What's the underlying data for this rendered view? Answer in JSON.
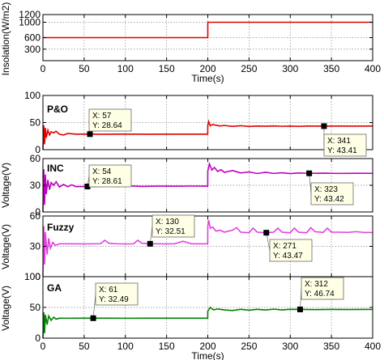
{
  "chart_data": [
    {
      "type": "line",
      "panel_label": "",
      "ylabel": "Insolation(W/m2)",
      "xlabel": "Time(s)",
      "xlim": [
        0,
        400
      ],
      "ylim": [
        0,
        1200
      ],
      "xticks": [
        0,
        50,
        100,
        150,
        200,
        250,
        300,
        350,
        400
      ],
      "yticks": [
        300,
        600,
        1000,
        1200
      ],
      "grid": true,
      "color": "#e00000",
      "series": [
        {
          "x": [
            0,
            200,
            200,
            400
          ],
          "y": [
            600,
            600,
            1000,
            1000
          ]
        }
      ],
      "datatips": []
    },
    {
      "type": "line",
      "panel_label": "P&O",
      "ylabel": "",
      "xlabel": "",
      "xlim": [
        0,
        400
      ],
      "ylim": [
        0,
        100
      ],
      "xticks": [
        0,
        50,
        100,
        150,
        200,
        250,
        300,
        350,
        400
      ],
      "yticks": [
        0,
        50,
        100
      ],
      "ytick_labels": [
        "0",
        "50",
        "100"
      ],
      "grid": true,
      "color": "#e00000",
      "series": [
        {
          "x": [
            0,
            1,
            2,
            3,
            4,
            6,
            8,
            10,
            13,
            16,
            20,
            25,
            30,
            40,
            57,
            70,
            90,
            110,
            130,
            150,
            170,
            190,
            199.9,
            200,
            201,
            203,
            206,
            210,
            215,
            220,
            230,
            240,
            250,
            260,
            270,
            280,
            290,
            300,
            310,
            320,
            341,
            360,
            380,
            400
          ],
          "y": [
            0,
            45,
            10,
            40,
            22,
            36,
            27,
            33,
            31,
            34,
            28.5,
            27,
            30,
            28.6,
            28.64,
            28.5,
            28.7,
            28.6,
            28.5,
            28.7,
            28.6,
            28.6,
            28.6,
            45,
            52,
            44,
            46.5,
            45,
            43.8,
            44.6,
            43,
            44.2,
            42.8,
            43.6,
            43.2,
            43.8,
            43.1,
            43.6,
            42.9,
            43.5,
            43.41,
            43.6,
            43.4,
            43.5
          ]
        }
      ],
      "datatips": [
        {
          "x": 57,
          "y": 28.64,
          "label_x": "X: 57",
          "label_y": "Y: 28.64"
        },
        {
          "x": 341,
          "y": 43.41,
          "label_x": "X: 341",
          "label_y": "Y: 43.41"
        }
      ]
    },
    {
      "type": "line",
      "panel_label": "INC",
      "ylabel": "Voltage(V)",
      "xlabel": "",
      "xlim": [
        0,
        400
      ],
      "ylim": [
        0,
        60
      ],
      "xticks": [
        0,
        50,
        100,
        150,
        200,
        250,
        300,
        350,
        400
      ],
      "yticks": [
        0,
        30,
        60
      ],
      "ytick_labels": [
        "0",
        "30",
        "60"
      ],
      "grid": true,
      "color": "#c000c0",
      "series": [
        {
          "x": [
            0,
            1,
            2,
            3,
            4,
            6,
            8,
            10,
            13,
            16,
            20,
            25,
            30,
            35,
            40,
            54,
            70,
            80,
            90,
            100,
            120,
            140,
            160,
            180,
            199.9,
            200,
            202,
            205,
            208,
            212,
            216,
            220,
            230,
            240,
            250,
            260,
            270,
            280,
            290,
            300,
            310,
            323,
            340,
            360,
            380,
            400
          ],
          "y": [
            0,
            48,
            8,
            42,
            20,
            36,
            25,
            33,
            30,
            34,
            28,
            31,
            28.3,
            30.5,
            28.5,
            28.61,
            28.8,
            30.2,
            28.5,
            29.5,
            28.7,
            29,
            28.9,
            29.1,
            29,
            46,
            54,
            47,
            50,
            45.5,
            47.5,
            44.5,
            46.5,
            43.8,
            45,
            43.2,
            44.6,
            43.3,
            44,
            43.1,
            43.8,
            43.42,
            43.6,
            43.3,
            43.5,
            43.4
          ]
        }
      ],
      "datatips": [
        {
          "x": 54,
          "y": 28.61,
          "label_x": "X: 54",
          "label_y": "Y: 28.61"
        },
        {
          "x": 323,
          "y": 43.42,
          "label_x": "X: 323",
          "label_y": "Y: 43.42"
        }
      ]
    },
    {
      "type": "line",
      "panel_label": "Fuzzy",
      "ylabel": "Voltage(V)",
      "xlabel": "",
      "xlim": [
        0,
        400
      ],
      "ylim": [
        0,
        60
      ],
      "xticks": [
        0,
        50,
        100,
        150,
        200,
        250,
        300,
        350,
        400
      ],
      "yticks": [
        0,
        30,
        60
      ],
      "ytick_labels": [
        "0",
        "30",
        "60"
      ],
      "grid": true,
      "color": "#e040e0",
      "series": [
        {
          "x": [
            0,
            1,
            2,
            3,
            5,
            7,
            9,
            12,
            15,
            20,
            30,
            40,
            50,
            60,
            70,
            75,
            80,
            90,
            100,
            110,
            115,
            120,
            130,
            140,
            150,
            160,
            170,
            180,
            190,
            199.9,
            200,
            201,
            203,
            206,
            210,
            215,
            220,
            230,
            235,
            240,
            250,
            255,
            260,
            271,
            280,
            285,
            290,
            300,
            305,
            310,
            320,
            325,
            330,
            340,
            345,
            350,
            360,
            370,
            380,
            390,
            400
          ],
          "y": [
            0,
            50,
            12,
            44,
            22,
            38,
            28,
            34,
            31,
            32.5,
            32.5,
            32.5,
            32.4,
            32.5,
            32.6,
            36,
            33,
            32.5,
            32.4,
            32.5,
            36,
            33,
            32.51,
            32.5,
            32.4,
            32.6,
            35,
            32.5,
            32.5,
            32.5,
            50,
            56,
            48,
            49,
            45,
            46,
            44,
            46,
            48.5,
            44,
            43.5,
            48,
            44,
            43.47,
            44,
            48,
            44,
            43.5,
            48,
            44,
            43.5,
            48.5,
            44.5,
            43.8,
            48,
            44,
            44,
            43.8,
            44.5,
            43.7,
            43.7
          ]
        }
      ],
      "datatips": [
        {
          "x": 130,
          "y": 32.51,
          "label_x": "X: 130",
          "label_y": "Y: 32.51"
        },
        {
          "x": 271,
          "y": 43.47,
          "label_x": "X: 271",
          "label_y": "Y: 43.47"
        }
      ]
    },
    {
      "type": "line",
      "panel_label": "GA",
      "ylabel": "Voltage(V)",
      "xlabel": "Time(s)",
      "xlim": [
        0,
        400
      ],
      "ylim": [
        0,
        100
      ],
      "xticks": [
        0,
        50,
        100,
        150,
        200,
        250,
        300,
        350,
        400
      ],
      "yticks": [
        0,
        50,
        100
      ],
      "ytick_labels": [
        "0",
        "50",
        "100"
      ],
      "grid": true,
      "color": "#008000",
      "series": [
        {
          "x": [
            0,
            1,
            2,
            3,
            5,
            7,
            10,
            13,
            16,
            20,
            30,
            40,
            50,
            61,
            80,
            100,
            130,
            160,
            199.9,
            200,
            203,
            207,
            212,
            220,
            230,
            240,
            250,
            260,
            270,
            280,
            290,
            300,
            312,
            330,
            350,
            370,
            390,
            400
          ],
          "y": [
            0,
            42,
            8,
            38,
            22,
            36,
            29,
            34,
            31,
            32.5,
            32.4,
            32.5,
            32.5,
            32.49,
            32.5,
            32.4,
            32.5,
            32.5,
            32.5,
            44,
            50,
            46,
            47.5,
            46,
            45,
            47,
            45.5,
            47,
            45.8,
            47.2,
            46,
            46.9,
            46.74,
            46.5,
            46.8,
            46.6,
            46.8,
            46.7
          ]
        }
      ],
      "datatips": [
        {
          "x": 61,
          "y": 32.49,
          "label_x": "X: 61",
          "label_y": "Y: 32.49"
        },
        {
          "x": 312,
          "y": 46.74,
          "label_x": "X: 312",
          "label_y": "Y: 46.74"
        }
      ]
    }
  ]
}
